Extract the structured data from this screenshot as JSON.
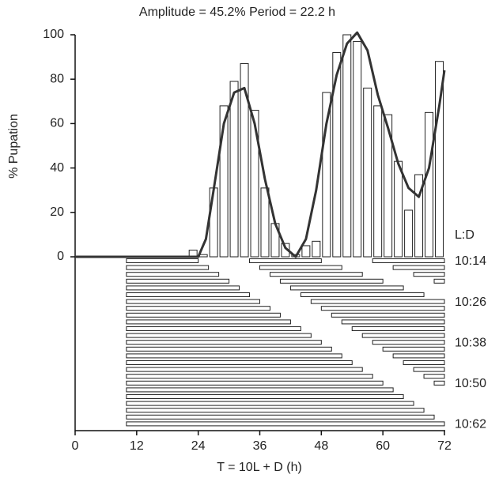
{
  "chart_data": {
    "type": "histogram",
    "title": "Amplitude = 45.2%    Period = 22.2 h",
    "ylabel": "% Pupation",
    "xlabel": "T = 10L + D (h)",
    "bins": [
      22,
      24,
      26,
      28,
      30,
      32,
      34,
      36,
      38,
      40,
      42,
      44,
      46,
      48,
      50,
      52,
      54,
      56,
      58,
      60,
      62,
      64,
      66,
      68,
      70,
      72
    ],
    "values": [
      3,
      1,
      31,
      68,
      79,
      87,
      66,
      31,
      15,
      6,
      1,
      5,
      7,
      74,
      92,
      100,
      97,
      76,
      68,
      64,
      43,
      21,
      37,
      65,
      88
    ],
    "color": "#ffffff",
    "fit": {
      "x": [
        0,
        24,
        25.5,
        27,
        29,
        31,
        33,
        35,
        37,
        39,
        41,
        43,
        45,
        47,
        49,
        51,
        53,
        55,
        57,
        59,
        61,
        63,
        65,
        67,
        69,
        71,
        72
      ],
      "values": [
        0,
        0,
        8,
        30,
        60,
        74,
        76,
        60,
        35,
        15,
        4,
        0,
        8,
        30,
        60,
        82,
        96,
        101,
        93,
        73,
        58,
        42,
        31,
        27,
        40,
        68,
        84
      ],
      "color": "#333333"
    },
    "xlim": [
      0,
      72
    ],
    "xticks": [
      0,
      12,
      24,
      36,
      48,
      60,
      72
    ],
    "ylim": [
      0,
      100
    ],
    "yticks": [
      0,
      20,
      40,
      60,
      80,
      100
    ],
    "schedule": {
      "title": "L:D",
      "light": 10,
      "dark": [
        14,
        16,
        18,
        20,
        22,
        24,
        26,
        28,
        30,
        32,
        34,
        36,
        38,
        40,
        42,
        44,
        46,
        48,
        50,
        52,
        54,
        56,
        58,
        60,
        62
      ],
      "labels": [
        "10:14",
        null,
        null,
        null,
        null,
        null,
        "10:26",
        null,
        null,
        null,
        null,
        null,
        "10:38",
        null,
        null,
        null,
        null,
        null,
        "10:50",
        null,
        null,
        null,
        null,
        null,
        "10:62"
      ]
    }
  }
}
